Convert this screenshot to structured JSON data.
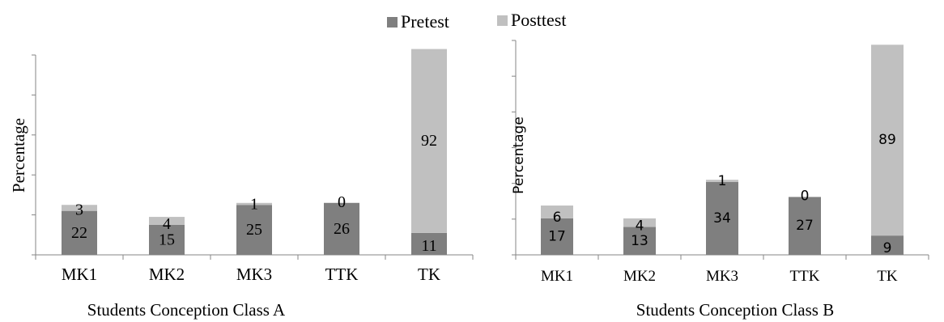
{
  "legend": {
    "pretest_label": "Pretest",
    "posttest_label": "Posttest",
    "pretest_color": "#7f7f7f",
    "posttest_color": "#c0c0c0"
  },
  "chart_data": [
    {
      "type": "bar",
      "stacked": true,
      "title": "",
      "xlabel": "Students Conception Class A",
      "ylabel": "Percentage",
      "categories": [
        "MK1",
        "MK2",
        "MK3",
        "TTK",
        "TK"
      ],
      "series": [
        {
          "name": "Pretest",
          "values": [
            22,
            15,
            25,
            26,
            11
          ]
        },
        {
          "name": "Posttest",
          "values": [
            3,
            4,
            1,
            0,
            92
          ]
        }
      ],
      "ylim": [
        0,
        100
      ],
      "grid": false
    },
    {
      "type": "bar",
      "stacked": true,
      "title": "",
      "xlabel": "Students Conception Class B",
      "ylabel": "Percentage",
      "categories": [
        "MK1",
        "MK2",
        "MK3",
        "TTK",
        "TK"
      ],
      "series": [
        {
          "name": "Pretest",
          "values": [
            17,
            13,
            34,
            27,
            9
          ]
        },
        {
          "name": "Posttest",
          "values": [
            6,
            4,
            1,
            0,
            89
          ]
        }
      ],
      "ylim": [
        0,
        100
      ],
      "grid": false
    }
  ]
}
